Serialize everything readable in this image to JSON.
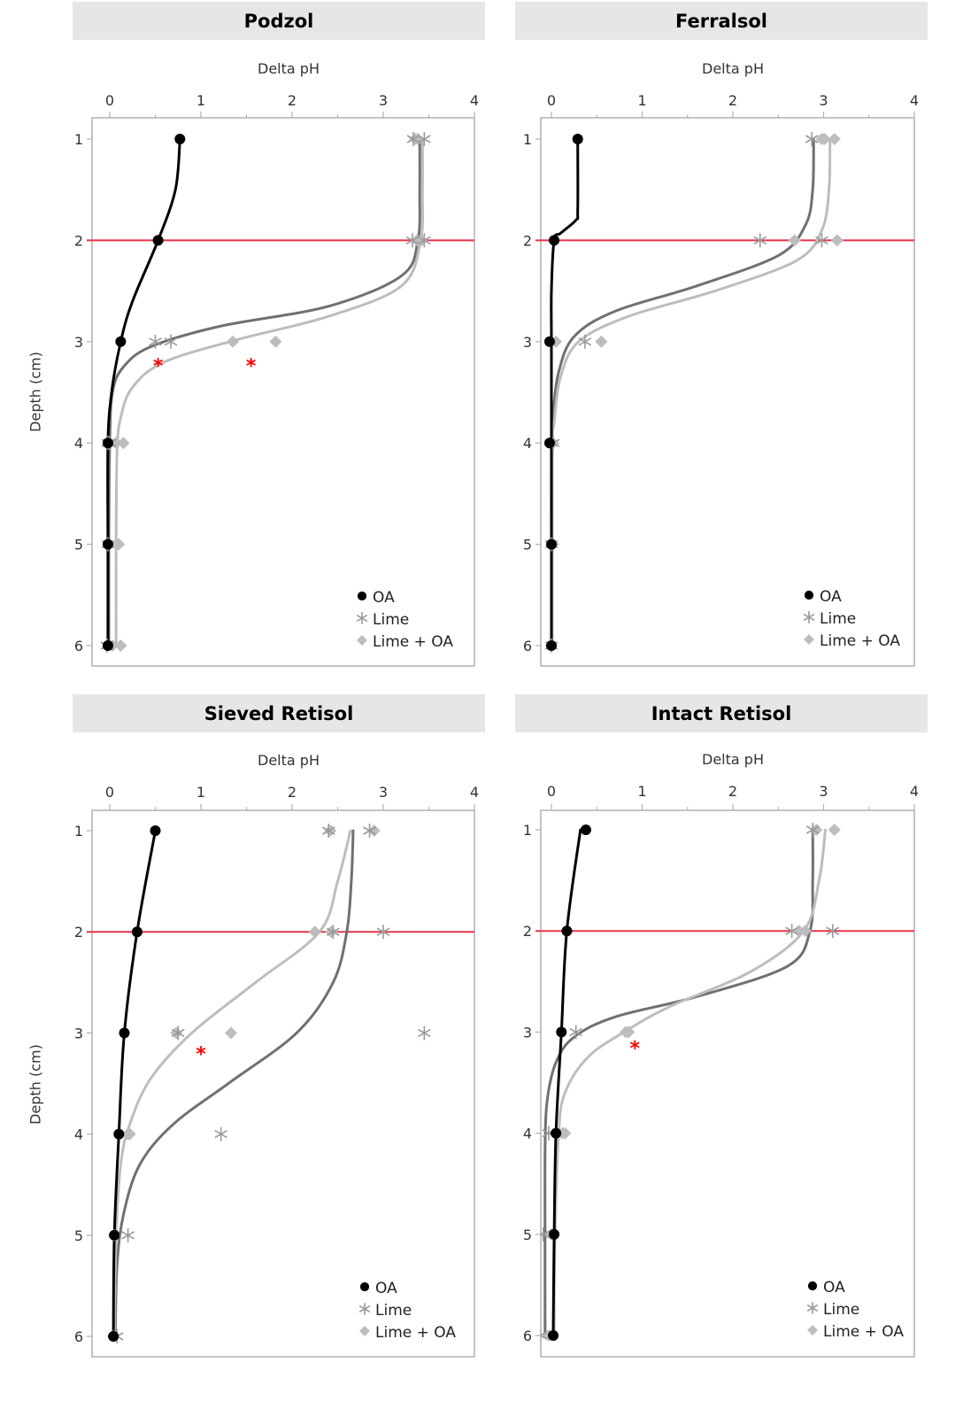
{
  "figure": {
    "ylabel_rows": [
      "Depth (cm)",
      "Depth (cm)"
    ]
  },
  "colors": {
    "oa": "#000000",
    "lime_line": "#707070",
    "lime_marker": "#9a9a9a",
    "lime_oa": "#bdbdbd",
    "reference_line": "#e8334a",
    "significance": "#ff0000",
    "frame": "#b0b0b0",
    "title_bg": "#e6e6e6"
  },
  "legend": {
    "entries": [
      {
        "label": "OA",
        "marker": "circle"
      },
      {
        "label": "Lime",
        "marker": "asterisk"
      },
      {
        "label": "Lime + OA",
        "marker": "diamond"
      }
    ],
    "placement": "bottom-right"
  },
  "chart_data": [
    {
      "type": "line",
      "title": "Podzol",
      "xlabel": "Delta pH",
      "ylabel": "Depth (cm)",
      "xlim": [
        -0.2,
        4
      ],
      "ylim": [
        6.2,
        0.8
      ],
      "xticks": [
        "0",
        "1",
        "2",
        "3",
        "4"
      ],
      "yticks": [
        "1",
        "2",
        "3",
        "4",
        "5",
        "6"
      ],
      "reference_depth": 2,
      "series": [
        {
          "name": "OA",
          "marker": "circle",
          "points": [
            [
              0.77,
              1
            ],
            [
              0.53,
              2
            ],
            [
              0.12,
              3
            ],
            [
              -0.02,
              4
            ],
            [
              -0.02,
              5
            ],
            [
              -0.02,
              6
            ]
          ],
          "curve": [
            [
              0.77,
              1
            ],
            [
              0.72,
              1.5
            ],
            [
              0.53,
              2
            ],
            [
              0.25,
              2.6
            ],
            [
              0.12,
              3
            ],
            [
              0.02,
              3.5
            ],
            [
              -0.02,
              4
            ],
            [
              -0.02,
              5
            ],
            [
              -0.02,
              6
            ]
          ]
        },
        {
          "name": "Lime",
          "marker": "asterisk",
          "points": [
            [
              3.33,
              1
            ],
            [
              3.45,
              1
            ],
            [
              3.32,
              2
            ],
            [
              3.45,
              2
            ],
            [
              0.5,
              3
            ],
            [
              0.67,
              3
            ],
            [
              -0.02,
              4
            ],
            [
              0.0,
              4
            ],
            [
              -0.02,
              5
            ],
            [
              -0.03,
              6
            ]
          ],
          "curve": [
            [
              3.4,
              1
            ],
            [
              3.4,
              1.5
            ],
            [
              3.38,
              2
            ],
            [
              3.2,
              2.35
            ],
            [
              2.4,
              2.65
            ],
            [
              1.2,
              2.85
            ],
            [
              0.45,
              3.05
            ],
            [
              0.15,
              3.25
            ],
            [
              0.03,
              3.5
            ],
            [
              0.0,
              4
            ],
            [
              -0.01,
              5
            ],
            [
              -0.01,
              6
            ]
          ]
        },
        {
          "name": "Lime + OA",
          "marker": "diamond",
          "points": [
            [
              3.35,
              1
            ],
            [
              3.38,
              1
            ],
            [
              3.37,
              2
            ],
            [
              3.42,
              2
            ],
            [
              1.35,
              3
            ],
            [
              1.82,
              3
            ],
            [
              0.07,
              4
            ],
            [
              0.15,
              4
            ],
            [
              0.08,
              5
            ],
            [
              0.1,
              5
            ],
            [
              0.03,
              6
            ],
            [
              0.12,
              6
            ]
          ],
          "curve": [
            [
              3.43,
              1
            ],
            [
              3.43,
              1.5
            ],
            [
              3.41,
              2
            ],
            [
              3.2,
              2.45
            ],
            [
              2.4,
              2.75
            ],
            [
              1.4,
              2.98
            ],
            [
              0.6,
              3.2
            ],
            [
              0.25,
              3.45
            ],
            [
              0.12,
              3.75
            ],
            [
              0.08,
              4.1
            ],
            [
              0.07,
              5
            ],
            [
              0.07,
              6
            ]
          ]
        }
      ],
      "significance_marks": [
        {
          "symbol": "*",
          "x": 0.53,
          "y": 3.18
        },
        {
          "symbol": "*",
          "x": 1.55,
          "y": 3.18
        }
      ]
    },
    {
      "type": "line",
      "title": "Ferralsol",
      "xlabel": "Delta pH",
      "ylabel": "",
      "xlim": [
        -0.12,
        4
      ],
      "ylim": [
        6.2,
        0.8
      ],
      "xticks": [
        "0",
        "1",
        "2",
        "3",
        "4"
      ],
      "yticks": [
        "1",
        "2",
        "3",
        "4",
        "5",
        "6"
      ],
      "reference_depth": 2,
      "series": [
        {
          "name": "OA",
          "marker": "circle",
          "points": [
            [
              0.29,
              1
            ],
            [
              0.03,
              2
            ],
            [
              -0.02,
              3
            ],
            [
              -0.02,
              4
            ],
            [
              0.0,
              5
            ],
            [
              0.0,
              6
            ]
          ],
          "curve": [
            [
              0.29,
              1
            ],
            [
              0.29,
              1.7
            ],
            [
              0.27,
              1.8
            ],
            [
              0.1,
              1.93
            ],
            [
              0.03,
              2
            ],
            [
              0.0,
              2.5
            ],
            [
              0.0,
              3
            ],
            [
              0.0,
              4
            ],
            [
              0.0,
              5
            ],
            [
              0.0,
              6
            ]
          ]
        },
        {
          "name": "Lime",
          "marker": "asterisk",
          "points": [
            [
              2.87,
              1
            ],
            [
              2.3,
              2
            ],
            [
              2.98,
              2
            ],
            [
              0.37,
              3
            ],
            [
              0.02,
              4
            ],
            [
              0.0,
              5
            ],
            [
              0.0,
              6
            ]
          ],
          "curve": [
            [
              2.89,
              1
            ],
            [
              2.88,
              1.5
            ],
            [
              2.8,
              1.85
            ],
            [
              2.5,
              2.15
            ],
            [
              1.6,
              2.45
            ],
            [
              0.7,
              2.7
            ],
            [
              0.25,
              2.95
            ],
            [
              0.08,
              3.3
            ],
            [
              0.02,
              3.7
            ],
            [
              0.0,
              4
            ],
            [
              0.0,
              5
            ],
            [
              0.0,
              6
            ]
          ]
        },
        {
          "name": "Lime + OA",
          "marker": "diamond",
          "points": [
            [
              2.98,
              1
            ],
            [
              3.01,
              1
            ],
            [
              3.12,
              1
            ],
            [
              2.68,
              2
            ],
            [
              3.15,
              2
            ],
            [
              0.05,
              3
            ],
            [
              0.55,
              3
            ],
            [
              0.02,
              4
            ],
            [
              0.02,
              5
            ],
            [
              0.0,
              6
            ]
          ],
          "curve": [
            [
              3.07,
              1
            ],
            [
              3.06,
              1.5
            ],
            [
              2.98,
              1.9
            ],
            [
              2.7,
              2.2
            ],
            [
              1.8,
              2.5
            ],
            [
              0.85,
              2.75
            ],
            [
              0.3,
              3.0
            ],
            [
              0.1,
              3.35
            ],
            [
              0.03,
              3.8
            ],
            [
              0.01,
              4
            ],
            [
              0.01,
              5
            ],
            [
              0.01,
              6
            ]
          ]
        }
      ],
      "significance_marks": []
    },
    {
      "type": "line",
      "title": "Sieved Retisol",
      "xlabel": "Delta pH",
      "ylabel": "Depth (cm)",
      "xlim": [
        -0.2,
        4
      ],
      "ylim": [
        6.2,
        0.8
      ],
      "xticks": [
        "0",
        "1",
        "2",
        "3",
        "4"
      ],
      "yticks": [
        "1",
        "2",
        "3",
        "4",
        "5",
        "6"
      ],
      "reference_depth": 2,
      "series": [
        {
          "name": "OA",
          "marker": "circle",
          "points": [
            [
              0.5,
              1
            ],
            [
              0.3,
              2
            ],
            [
              0.16,
              3
            ],
            [
              0.1,
              4
            ],
            [
              0.05,
              5
            ],
            [
              0.04,
              6
            ]
          ],
          "curve": [
            [
              0.5,
              1
            ],
            [
              0.3,
              2
            ],
            [
              0.16,
              3
            ],
            [
              0.1,
              4
            ],
            [
              0.05,
              5
            ],
            [
              0.04,
              6
            ]
          ]
        },
        {
          "name": "Lime",
          "marker": "asterisk",
          "points": [
            [
              2.4,
              1
            ],
            [
              2.85,
              1
            ],
            [
              2.45,
              2
            ],
            [
              3.0,
              2
            ],
            [
              0.75,
              3
            ],
            [
              3.45,
              3
            ],
            [
              1.22,
              4
            ],
            [
              0.2,
              5
            ],
            [
              0.08,
              6
            ]
          ],
          "curve": [
            [
              2.67,
              1
            ],
            [
              2.65,
              1.5
            ],
            [
              2.6,
              2
            ],
            [
              2.45,
              2.5
            ],
            [
              2.05,
              3
            ],
            [
              1.3,
              3.5
            ],
            [
              0.7,
              3.9
            ],
            [
              0.33,
              4.3
            ],
            [
              0.15,
              4.8
            ],
            [
              0.08,
              5.3
            ],
            [
              0.06,
              6
            ]
          ]
        },
        {
          "name": "Lime + OA",
          "marker": "diamond",
          "points": [
            [
              2.42,
              1
            ],
            [
              2.9,
              1
            ],
            [
              2.25,
              2
            ],
            [
              2.43,
              2
            ],
            [
              0.73,
              3
            ],
            [
              1.33,
              3
            ],
            [
              0.2,
              4
            ],
            [
              0.22,
              4
            ],
            [
              0.05,
              5
            ],
            [
              0.04,
              6
            ]
          ],
          "curve": [
            [
              2.64,
              1
            ],
            [
              2.5,
              1.5
            ],
            [
              2.3,
              2
            ],
            [
              1.6,
              2.5
            ],
            [
              0.9,
              3
            ],
            [
              0.45,
              3.45
            ],
            [
              0.22,
              3.9
            ],
            [
              0.12,
              4.3
            ],
            [
              0.07,
              5
            ],
            [
              0.05,
              6
            ]
          ]
        }
      ],
      "significance_marks": [
        {
          "symbol": "*",
          "x": 1.0,
          "y": 3.15
        }
      ]
    },
    {
      "type": "line",
      "title": "Intact Retisol",
      "xlabel": "Delta pH",
      "ylabel": "",
      "xlim": [
        -0.12,
        4
      ],
      "ylim": [
        6.2,
        0.8
      ],
      "xticks": [
        "0",
        "1",
        "2",
        "3",
        "4"
      ],
      "yticks": [
        "1",
        "2",
        "3",
        "4",
        "5",
        "6"
      ],
      "reference_depth": 2,
      "series": [
        {
          "name": "OA",
          "marker": "circle",
          "points": [
            [
              0.38,
              1
            ],
            [
              0.17,
              2
            ],
            [
              0.11,
              3
            ],
            [
              0.05,
              4
            ],
            [
              0.03,
              5
            ],
            [
              0.02,
              6
            ]
          ],
          "curve": [
            [
              0.32,
              1
            ],
            [
              0.17,
              2
            ],
            [
              0.11,
              3
            ],
            [
              0.05,
              4
            ],
            [
              0.03,
              5
            ],
            [
              0.02,
              6
            ]
          ]
        },
        {
          "name": "Lime",
          "marker": "asterisk",
          "points": [
            [
              2.88,
              1
            ],
            [
              2.65,
              2
            ],
            [
              3.1,
              2
            ],
            [
              0.27,
              3
            ],
            [
              -0.03,
              4
            ],
            [
              -0.09,
              5
            ],
            [
              -0.12,
              6
            ]
          ],
          "curve": [
            [
              2.88,
              1
            ],
            [
              2.88,
              1.5
            ],
            [
              2.85,
              2
            ],
            [
              2.6,
              2.35
            ],
            [
              1.6,
              2.65
            ],
            [
              0.7,
              2.85
            ],
            [
              0.25,
              3.05
            ],
            [
              0.05,
              3.3
            ],
            [
              -0.05,
              3.7
            ],
            [
              -0.07,
              4.2
            ],
            [
              -0.07,
              5
            ],
            [
              -0.07,
              6
            ]
          ]
        },
        {
          "name": "Lime + OA",
          "marker": "diamond",
          "points": [
            [
              2.92,
              1
            ],
            [
              3.12,
              1
            ],
            [
              2.73,
              2
            ],
            [
              2.8,
              2
            ],
            [
              0.82,
              3
            ],
            [
              0.85,
              3
            ],
            [
              0.12,
              4
            ],
            [
              0.15,
              4
            ],
            [
              0.0,
              5
            ],
            [
              -0.03,
              6
            ]
          ],
          "curve": [
            [
              3.02,
              1
            ],
            [
              2.95,
              1.5
            ],
            [
              2.78,
              2
            ],
            [
              2.2,
              2.4
            ],
            [
              1.3,
              2.75
            ],
            [
              0.8,
              3.0
            ],
            [
              0.4,
              3.25
            ],
            [
              0.15,
              3.6
            ],
            [
              0.08,
              4.0
            ],
            [
              0.04,
              5
            ],
            [
              0.03,
              6
            ]
          ]
        }
      ],
      "significance_marks": [
        {
          "symbol": "*",
          "x": 0.92,
          "y": 3.1
        }
      ]
    }
  ]
}
